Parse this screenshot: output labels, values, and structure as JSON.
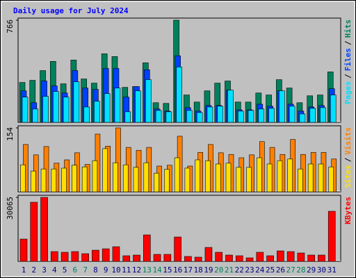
{
  "title": "Daily usage for July 2024",
  "chart_data": [
    {
      "type": "bar",
      "legend_separator": "/",
      "ylim": [
        0,
        766
      ],
      "yticks": [
        766
      ],
      "series": [
        {
          "name": "Hits",
          "color": "#00805c",
          "values": [
            299,
            315,
            388,
            457,
            289,
            467,
            325,
            294,
            514,
            493,
            262,
            268,
            446,
            147,
            142,
            766,
            205,
            152,
            236,
            294,
            310,
            152,
            152,
            220,
            205,
            320,
            257,
            147,
            199,
            205,
            378
          ]
        },
        {
          "name": "Files",
          "color": "#0040ff",
          "values": [
            236,
            147,
            310,
            273,
            220,
            388,
            257,
            247,
            404,
            404,
            189,
            268,
            394,
            100,
            84,
            499,
            110,
            84,
            126,
            126,
            241,
            94,
            94,
            136,
            121,
            236,
            136,
            84,
            115,
            126,
            252
          ]
        },
        {
          "name": "Pages",
          "color": "#00e0ff",
          "values": [
            189,
            100,
            194,
            231,
            189,
            304,
            115,
            158,
            215,
            257,
            79,
            236,
            320,
            89,
            79,
            415,
            89,
            73,
            115,
            121,
            241,
            84,
            89,
            100,
            105,
            236,
            121,
            63,
            105,
            110,
            205
          ]
        }
      ]
    },
    {
      "type": "bar",
      "legend_separator": "/",
      "ylim": [
        0,
        154
      ],
      "yticks": [
        154
      ],
      "series": [
        {
          "name": "Visits",
          "color": "#ff8000",
          "values": [
            114,
            89,
            109,
            69,
            77,
            94,
            66,
            139,
            110,
            154,
            107,
            100,
            107,
            62,
            64,
            134,
            62,
            95,
            114,
            94,
            90,
            82,
            89,
            121,
            107,
            90,
            126,
            90,
            95,
            95,
            79
          ]
        },
        {
          "name": "Sites",
          "color": "#ffe000",
          "values": [
            65,
            50,
            55,
            55,
            57,
            64,
            60,
            75,
            104,
            70,
            65,
            59,
            70,
            45,
            54,
            82,
            57,
            77,
            75,
            67,
            69,
            59,
            59,
            82,
            67,
            75,
            79,
            55,
            67,
            67,
            60
          ]
        }
      ]
    },
    {
      "type": "bar",
      "ylim": [
        0,
        30065
      ],
      "yticks": [
        30065
      ],
      "categories": [
        "1",
        "2",
        "3",
        "4",
        "5",
        "6",
        "7",
        "8",
        "9",
        "10",
        "11",
        "12",
        "13",
        "14",
        "15",
        "16",
        "17",
        "18",
        "19",
        "20",
        "21",
        "22",
        "23",
        "24",
        "25",
        "26",
        "27",
        "28",
        "29",
        "30",
        "31"
      ],
      "category_colors": [
        "#000080",
        "#000080",
        "#000080",
        "#000080",
        "#000080",
        "#00805c",
        "#00805c",
        "#000080",
        "#000080",
        "#000080",
        "#000080",
        "#000080",
        "#00805c",
        "#00805c",
        "#000080",
        "#000080",
        "#000080",
        "#000080",
        "#000080",
        "#00805c",
        "#00805c",
        "#000080",
        "#000080",
        "#000080",
        "#000080",
        "#000080",
        "#00805c",
        "#00805c",
        "#000080",
        "#000080",
        "#000080"
      ],
      "series": [
        {
          "name": "KBytes",
          "color": "#ff0000",
          "values": [
            10458,
            27778,
            30065,
            4575,
            4248,
            4575,
            3595,
            5229,
            5882,
            6863,
            2614,
            2941,
            12418,
            3268,
            3268,
            11438,
            2288,
            1961,
            6536,
            4248,
            2941,
            2614,
            1634,
            4248,
            2614,
            4902,
            4575,
            3922,
            2941,
            2941,
            23529
          ]
        }
      ]
    }
  ]
}
